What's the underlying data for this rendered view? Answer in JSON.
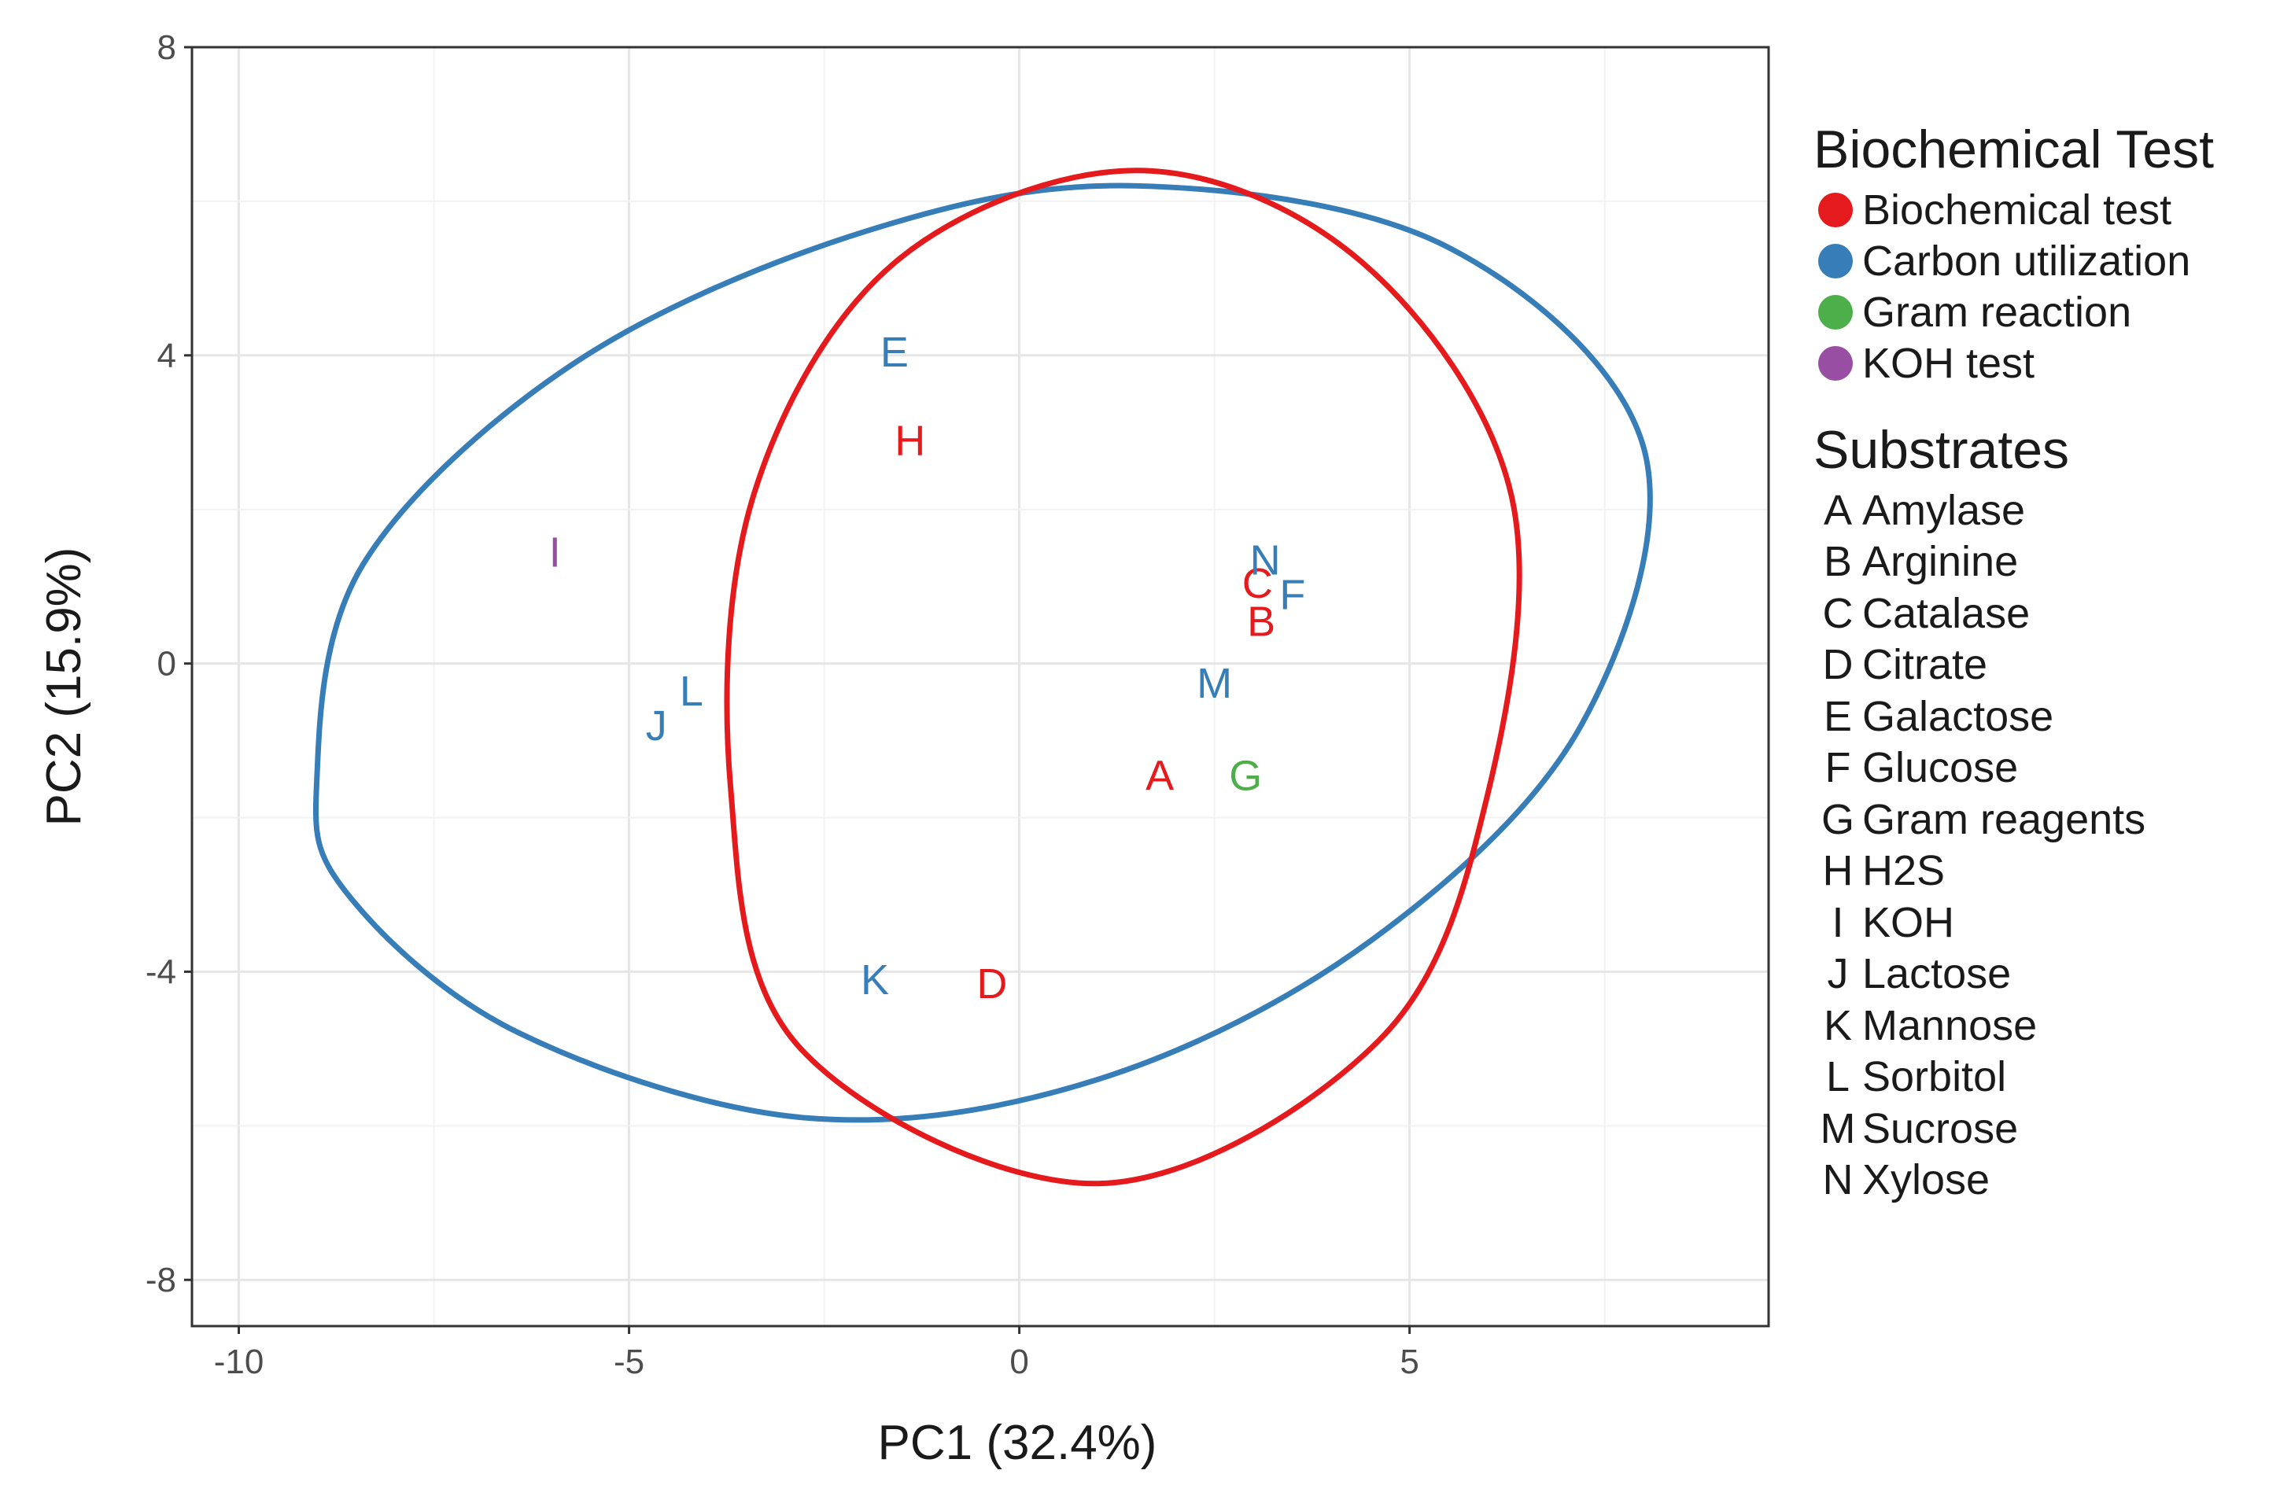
{
  "chart_data": {
    "type": "scatter",
    "subtype": "pca-biplot-with-ellipses",
    "xlabel": "PC1 (32.4%)",
    "ylabel": "PC2 (15.9%)",
    "xlim": [
      -10.6,
      9.6
    ],
    "ylim": [
      -8.6,
      8.0
    ],
    "xticks": [
      -10,
      -5,
      0,
      5
    ],
    "yticks": [
      -8,
      -4,
      0,
      4,
      8
    ],
    "xtick_labels": [
      "-10",
      "-5",
      "0",
      "5"
    ],
    "ytick_labels": [
      "-8",
      "-4",
      "0",
      "4",
      "8"
    ],
    "grid": true,
    "legend_position": "right",
    "groups": [
      {
        "key": "biochemical",
        "name": "Biochemical test",
        "color": "#e41a1c"
      },
      {
        "key": "carbon",
        "name": "Carbon utilization",
        "color": "#377eb8"
      },
      {
        "key": "gram",
        "name": "Gram reaction",
        "color": "#4daf4a"
      },
      {
        "key": "koh",
        "name": "KOH test",
        "color": "#984ea3"
      }
    ],
    "ellipses": [
      {
        "group": "carbon",
        "points": [
          [
            -9.0,
            -1.5
          ],
          [
            -8.4,
            1.3
          ],
          [
            -5.7,
            3.9
          ],
          [
            -2.0,
            5.6
          ],
          [
            1.5,
            6.2
          ],
          [
            5.5,
            5.4
          ],
          [
            8.0,
            2.8
          ],
          [
            7.2,
            -0.8
          ],
          [
            4.5,
            -3.6
          ],
          [
            1.0,
            -5.4
          ],
          [
            -2.7,
            -5.9
          ],
          [
            -6.4,
            -4.8
          ],
          [
            -8.6,
            -3.0
          ]
        ]
      },
      {
        "group": "biochemical",
        "points": [
          [
            1.5,
            6.4
          ],
          [
            4.4,
            5.2
          ],
          [
            6.3,
            2.2
          ],
          [
            6.0,
            -1.7
          ],
          [
            4.6,
            -4.9
          ],
          [
            1.0,
            -6.75
          ],
          [
            -2.8,
            -5.0
          ],
          [
            -3.7,
            -1.6
          ],
          [
            -3.4,
            2.2
          ],
          [
            -1.6,
            5.2
          ]
        ]
      }
    ],
    "points": [
      {
        "label": "A",
        "x": 1.8,
        "y": -1.45,
        "group": "biochemical"
      },
      {
        "label": "B",
        "x": 3.1,
        "y": 0.55,
        "group": "biochemical"
      },
      {
        "label": "C",
        "x": 3.05,
        "y": 1.05,
        "group": "biochemical"
      },
      {
        "label": "D",
        "x": -0.35,
        "y": -4.15,
        "group": "biochemical"
      },
      {
        "label": "E",
        "x": -1.6,
        "y": 4.05,
        "group": "carbon"
      },
      {
        "label": "F",
        "x": 3.5,
        "y": 0.9,
        "group": "carbon"
      },
      {
        "label": "G",
        "x": 2.9,
        "y": -1.45,
        "group": "gram"
      },
      {
        "label": "H",
        "x": -1.4,
        "y": 2.9,
        "group": "biochemical"
      },
      {
        "label": "I",
        "x": -5.95,
        "y": 1.45,
        "group": "koh"
      },
      {
        "label": "J",
        "x": -4.65,
        "y": -0.8,
        "group": "carbon"
      },
      {
        "label": "K",
        "x": -1.85,
        "y": -4.1,
        "group": "carbon"
      },
      {
        "label": "L",
        "x": -4.2,
        "y": -0.35,
        "group": "carbon"
      },
      {
        "label": "M",
        "x": 2.5,
        "y": -0.25,
        "group": "carbon"
      },
      {
        "label": "N",
        "x": 3.15,
        "y": 1.35,
        "group": "carbon"
      }
    ]
  },
  "legend": {
    "group_title": "Biochemical Test",
    "group_items": [
      {
        "label": "Biochemical test",
        "color": "#e41a1c"
      },
      {
        "label": "Carbon utilization",
        "color": "#377eb8"
      },
      {
        "label": "Gram reaction",
        "color": "#4daf4a"
      },
      {
        "label": "KOH test",
        "color": "#984ea3"
      }
    ],
    "substrate_title": "Substrates",
    "substrates": [
      {
        "letter": "A",
        "name": "Amylase"
      },
      {
        "letter": "B",
        "name": "Arginine"
      },
      {
        "letter": "C",
        "name": "Catalase"
      },
      {
        "letter": "D",
        "name": "Citrate"
      },
      {
        "letter": "E",
        "name": "Galactose"
      },
      {
        "letter": "F",
        "name": "Glucose"
      },
      {
        "letter": "G",
        "name": "Gram reagents"
      },
      {
        "letter": "H",
        "name": "H2S"
      },
      {
        "letter": "I",
        "name": "KOH"
      },
      {
        "letter": "J",
        "name": "Lactose"
      },
      {
        "letter": "K",
        "name": "Mannose"
      },
      {
        "letter": "L",
        "name": "Sorbitol"
      },
      {
        "letter": "M",
        "name": "Sucrose"
      },
      {
        "letter": "N",
        "name": "Xylose"
      }
    ]
  }
}
